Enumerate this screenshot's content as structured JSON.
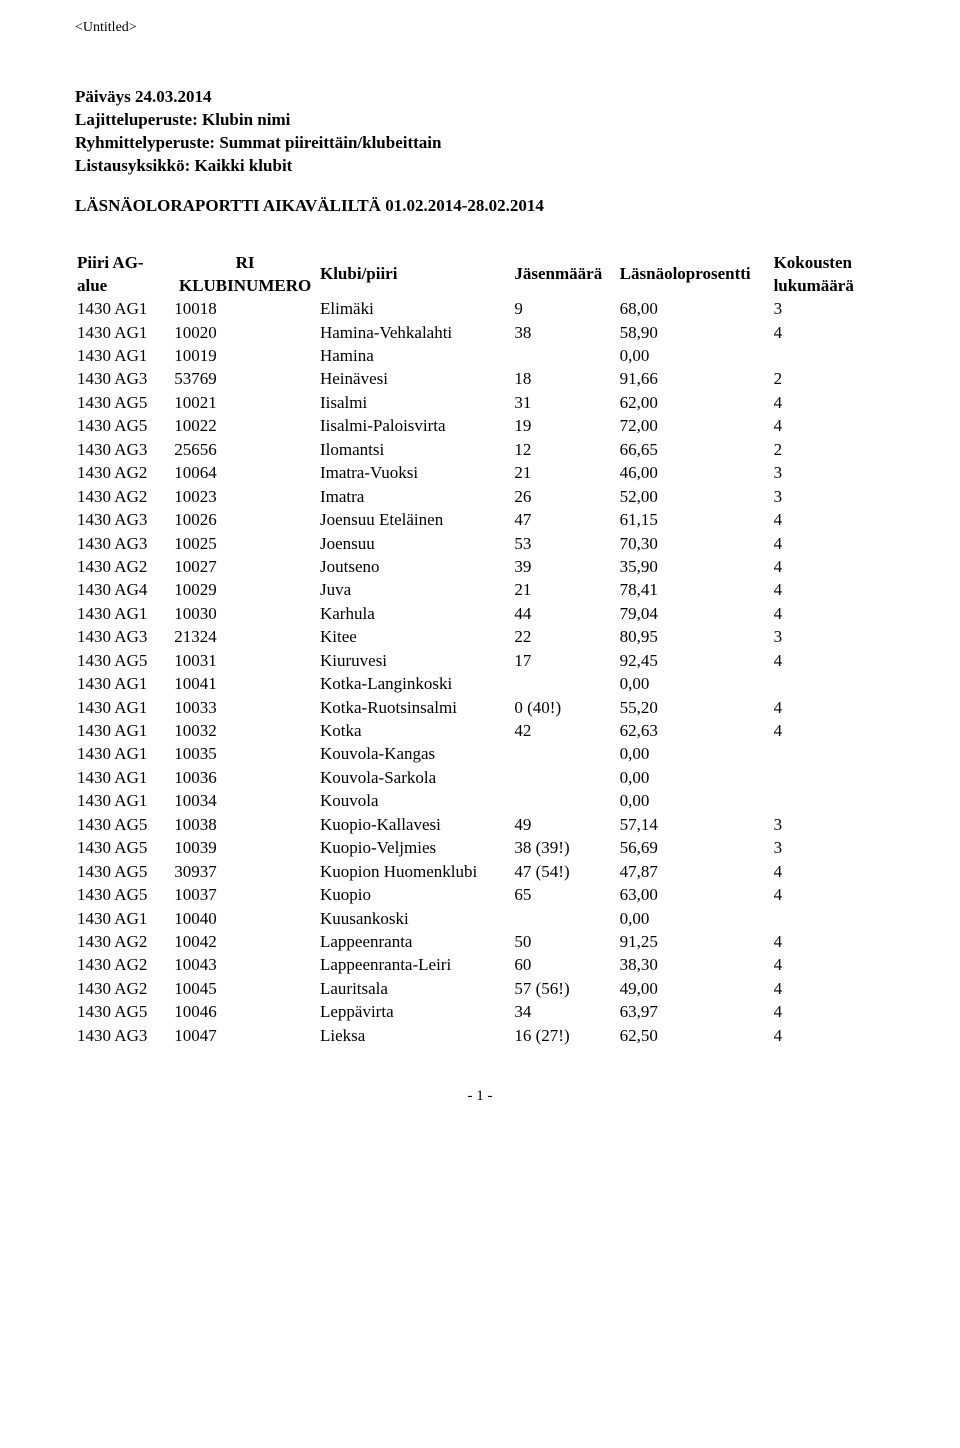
{
  "doc_title": "<Untitled>",
  "meta": {
    "paivays": "Päiväys 24.03.2014",
    "lajittelu": "Lajitteluperuste: Klubin nimi",
    "ryhmittely": "Ryhmittelyperuste: Summat piireittäin/klubeittain",
    "listaus": "Listausyksikkö: Kaikki klubit"
  },
  "report_title": "LÄSNÄOLORAPORTTI AIKAVÄLILTÄ 01.02.2014-28.02.2014",
  "columns": {
    "piiri": "Piiri AG-alue",
    "klubinumero_1": "RI",
    "klubinumero_2": "KLUBINUMERO",
    "klubi": "Klubi/piiri",
    "jasen": "Jäsenmäärä",
    "lasna": "Läsnäoloprosentti",
    "kokous_1": "Kokousten",
    "kokous_2": "lukumäärä"
  },
  "rows": [
    {
      "piiri": "1430 AG1",
      "num": "10018",
      "klubi": "Elimäki",
      "jasen": "9",
      "lasna": "68,00",
      "kokous": "3"
    },
    {
      "piiri": "1430 AG1",
      "num": "10020",
      "klubi": "Hamina-Vehkalahti",
      "jasen": "38",
      "lasna": "58,90",
      "kokous": "4"
    },
    {
      "piiri": "1430 AG1",
      "num": "10019",
      "klubi": "Hamina",
      "jasen": "",
      "lasna": "0,00",
      "kokous": ""
    },
    {
      "piiri": "1430 AG3",
      "num": "53769",
      "klubi": "Heinävesi",
      "jasen": "18",
      "lasna": "91,66",
      "kokous": "2"
    },
    {
      "piiri": "1430 AG5",
      "num": "10021",
      "klubi": "Iisalmi",
      "jasen": "31",
      "lasna": "62,00",
      "kokous": "4"
    },
    {
      "piiri": "1430 AG5",
      "num": "10022",
      "klubi": "Iisalmi-Paloisvirta",
      "jasen": "19",
      "lasna": "72,00",
      "kokous": "4"
    },
    {
      "piiri": "1430 AG3",
      "num": "25656",
      "klubi": "Ilomantsi",
      "jasen": "12",
      "lasna": "66,65",
      "kokous": "2"
    },
    {
      "piiri": "1430 AG2",
      "num": "10064",
      "klubi": "Imatra-Vuoksi",
      "jasen": "21",
      "lasna": "46,00",
      "kokous": "3"
    },
    {
      "piiri": "1430 AG2",
      "num": "10023",
      "klubi": "Imatra",
      "jasen": "26",
      "lasna": "52,00",
      "kokous": "3"
    },
    {
      "piiri": "1430 AG3",
      "num": "10026",
      "klubi": "Joensuu Eteläinen",
      "jasen": "47",
      "lasna": "61,15",
      "kokous": "4"
    },
    {
      "piiri": "1430 AG3",
      "num": "10025",
      "klubi": "Joensuu",
      "jasen": "53",
      "lasna": "70,30",
      "kokous": "4"
    },
    {
      "piiri": "1430 AG2",
      "num": "10027",
      "klubi": "Joutseno",
      "jasen": "39",
      "lasna": "35,90",
      "kokous": "4"
    },
    {
      "piiri": "1430 AG4",
      "num": "10029",
      "klubi": "Juva",
      "jasen": "21",
      "lasna": "78,41",
      "kokous": "4"
    },
    {
      "piiri": "1430 AG1",
      "num": "10030",
      "klubi": "Karhula",
      "jasen": "44",
      "lasna": "79,04",
      "kokous": "4"
    },
    {
      "piiri": "1430 AG3",
      "num": "21324",
      "klubi": "Kitee",
      "jasen": "22",
      "lasna": "80,95",
      "kokous": "3"
    },
    {
      "piiri": "1430 AG5",
      "num": "10031",
      "klubi": "Kiuruvesi",
      "jasen": "17",
      "lasna": "92,45",
      "kokous": "4"
    },
    {
      "piiri": "1430 AG1",
      "num": "10041",
      "klubi": "Kotka-Langinkoski",
      "jasen": "",
      "lasna": "0,00",
      "kokous": ""
    },
    {
      "piiri": "1430 AG1",
      "num": "10033",
      "klubi": "Kotka-Ruotsinsalmi",
      "jasen": "0 (40!)",
      "lasna": "55,20",
      "kokous": "4"
    },
    {
      "piiri": "1430 AG1",
      "num": "10032",
      "klubi": "Kotka",
      "jasen": "42",
      "lasna": "62,63",
      "kokous": "4"
    },
    {
      "piiri": "1430 AG1",
      "num": "10035",
      "klubi": "Kouvola-Kangas",
      "jasen": "",
      "lasna": "0,00",
      "kokous": ""
    },
    {
      "piiri": "1430 AG1",
      "num": "10036",
      "klubi": "Kouvola-Sarkola",
      "jasen": "",
      "lasna": "0,00",
      "kokous": ""
    },
    {
      "piiri": "1430 AG1",
      "num": "10034",
      "klubi": "Kouvola",
      "jasen": "",
      "lasna": "0,00",
      "kokous": ""
    },
    {
      "piiri": "1430 AG5",
      "num": "10038",
      "klubi": "Kuopio-Kallavesi",
      "jasen": "49",
      "lasna": "57,14",
      "kokous": "3"
    },
    {
      "piiri": "1430 AG5",
      "num": "10039",
      "klubi": "Kuopio-Veljmies",
      "jasen": "38 (39!)",
      "lasna": "56,69",
      "kokous": "3"
    },
    {
      "piiri": "1430 AG5",
      "num": "30937",
      "klubi": "Kuopion Huomenklubi",
      "jasen": "47 (54!)",
      "lasna": "47,87",
      "kokous": "4"
    },
    {
      "piiri": "1430 AG5",
      "num": "10037",
      "klubi": "Kuopio",
      "jasen": "65",
      "lasna": "63,00",
      "kokous": "4"
    },
    {
      "piiri": "1430 AG1",
      "num": "10040",
      "klubi": "Kuusankoski",
      "jasen": "",
      "lasna": "0,00",
      "kokous": ""
    },
    {
      "piiri": "1430 AG2",
      "num": "10042",
      "klubi": "Lappeenranta",
      "jasen": "50",
      "lasna": "91,25",
      "kokous": "4"
    },
    {
      "piiri": "1430 AG2",
      "num": "10043",
      "klubi": "Lappeenranta-Leiri",
      "jasen": "60",
      "lasna": "38,30",
      "kokous": "4"
    },
    {
      "piiri": "1430 AG2",
      "num": "10045",
      "klubi": "Lauritsala",
      "jasen": "57 (56!)",
      "lasna": "49,00",
      "kokous": "4"
    },
    {
      "piiri": "1430 AG5",
      "num": "10046",
      "klubi": "Leppävirta",
      "jasen": "34",
      "lasna": "63,97",
      "kokous": "4"
    },
    {
      "piiri": "1430 AG3",
      "num": "10047",
      "klubi": "Lieksa",
      "jasen": "16 (27!)",
      "lasna": "62,50",
      "kokous": "4"
    }
  ],
  "footer": "- 1 -"
}
